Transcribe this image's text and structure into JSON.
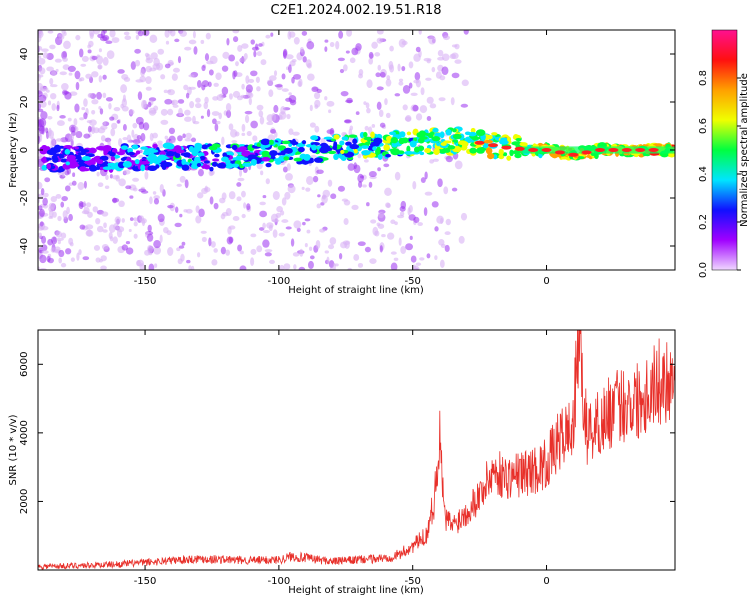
{
  "title": "C2E1.2024.002.19.51.R18",
  "colors": {
    "snr_line": "#e8302a",
    "spec_low": "#e6ccf5",
    "spec_mid": "#8a1cf0",
    "spec_hi": "#00e5ff",
    "spec_peak": "#ff1a1a"
  },
  "chart_data": [
    {
      "type": "heatmap",
      "xlabel": "Height of straight line (km)",
      "ylabel": "Frequency (Hz)",
      "xlim": [
        -190,
        48
      ],
      "ylim": [
        -50,
        50
      ],
      "x_ticks": [
        -150,
        -100,
        -50,
        0
      ],
      "x_tick_labels": [
        "-150",
        "-100",
        "-50",
        "0"
      ],
      "y_ticks": [
        -40,
        -20,
        0,
        20,
        40
      ],
      "y_tick_labels": [
        "-40",
        "-20",
        "0",
        "20",
        "40"
      ],
      "colorbar": {
        "label": "Normalized spectral amplitude",
        "range": [
          0,
          1
        ],
        "ticks": [
          0.0,
          0.2,
          0.4,
          0.6,
          0.8
        ],
        "tick_labels": [
          "0.0",
          "0.2",
          "0.4",
          "0.6",
          "0.8"
        ],
        "stops": [
          "#f0d8ff",
          "#a000ff",
          "#1010ff",
          "#00e5ff",
          "#00ff40",
          "#f0ff00",
          "#ffa000",
          "#ff1010",
          "#ff1090"
        ]
      },
      "ridge": {
        "x": [
          -190,
          -150,
          -120,
          -100,
          -80,
          -60,
          -45,
          -35,
          -25,
          -15,
          -5,
          0,
          10,
          20,
          30,
          48
        ],
        "frequency": [
          -4,
          -3,
          -3,
          -1,
          1,
          2,
          3,
          4,
          3,
          1,
          0,
          0,
          -2,
          0,
          0,
          0
        ]
      },
      "grid": false
    },
    {
      "type": "line",
      "xlabel": "Height of straight line (km)",
      "ylabel": "SNR (10 * v/v)",
      "xlim": [
        -190,
        48
      ],
      "ylim": [
        0,
        7000
      ],
      "x_ticks": [
        -150,
        -100,
        -50,
        0
      ],
      "x_tick_labels": [
        "-150",
        "-100",
        "-50",
        "0"
      ],
      "y_ticks": [
        2000,
        4000,
        6000
      ],
      "y_tick_labels": [
        "2000",
        "4000",
        "6000"
      ],
      "series": [
        {
          "x": [
            -190,
            -175,
            -160,
            -150,
            -140,
            -130,
            -120,
            -110,
            -100,
            -95,
            -90,
            -85,
            -80,
            -70,
            -60,
            -55,
            -50,
            -45,
            -42,
            -40,
            -38,
            -35,
            -30,
            -25,
            -22,
            -20,
            -15,
            -10,
            -5,
            0,
            5,
            10,
            12,
            15,
            20,
            25,
            30,
            35,
            40,
            48
          ],
          "y": [
            100,
            130,
            170,
            220,
            280,
            330,
            300,
            280,
            300,
            400,
            350,
            300,
            250,
            300,
            350,
            450,
            700,
            1000,
            2000,
            3900,
            1500,
            1300,
            1700,
            2200,
            2600,
            2900,
            2700,
            2800,
            2900,
            3100,
            3800,
            4200,
            6900,
            4000,
            4300,
            4700,
            4900,
            5000,
            5400,
            5700
          ]
        }
      ],
      "grid": false
    }
  ]
}
